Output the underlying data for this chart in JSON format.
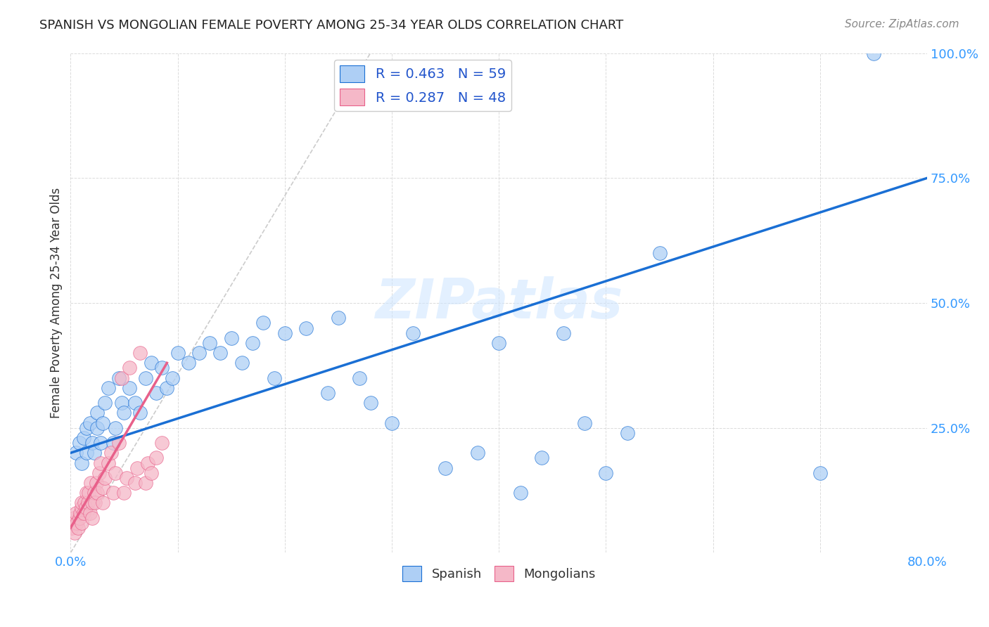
{
  "title": "SPANISH VS MONGOLIAN FEMALE POVERTY AMONG 25-34 YEAR OLDS CORRELATION CHART",
  "source": "Source: ZipAtlas.com",
  "ylabel": "Female Poverty Among 25-34 Year Olds",
  "xlim": [
    0,
    0.8
  ],
  "ylim": [
    0,
    1.0
  ],
  "xticks": [
    0.0,
    0.1,
    0.2,
    0.3,
    0.4,
    0.5,
    0.6,
    0.7,
    0.8
  ],
  "xticklabels": [
    "0.0%",
    "",
    "",
    "",
    "",
    "",
    "",
    "",
    "80.0%"
  ],
  "yticks": [
    0.0,
    0.25,
    0.5,
    0.75,
    1.0
  ],
  "yticklabels": [
    "",
    "25.0%",
    "50.0%",
    "75.0%",
    "100.0%"
  ],
  "R_spanish": 0.463,
  "N_spanish": 59,
  "R_mongolian": 0.287,
  "N_mongolian": 48,
  "spanish_color": "#aecff5",
  "mongolian_color": "#f5b8c8",
  "trendline_spanish_color": "#1a6fd4",
  "trendline_mongolian_color": "#e8608a",
  "watermark": "ZIPatlas",
  "spanish_x": [
    0.005,
    0.008,
    0.01,
    0.012,
    0.015,
    0.015,
    0.018,
    0.02,
    0.022,
    0.025,
    0.025,
    0.028,
    0.03,
    0.032,
    0.035,
    0.04,
    0.042,
    0.045,
    0.048,
    0.05,
    0.055,
    0.06,
    0.065,
    0.07,
    0.075,
    0.08,
    0.085,
    0.09,
    0.095,
    0.1,
    0.11,
    0.12,
    0.13,
    0.14,
    0.15,
    0.16,
    0.17,
    0.18,
    0.19,
    0.2,
    0.22,
    0.24,
    0.25,
    0.27,
    0.28,
    0.3,
    0.32,
    0.35,
    0.38,
    0.4,
    0.42,
    0.44,
    0.46,
    0.48,
    0.5,
    0.52,
    0.55,
    0.7,
    0.75
  ],
  "spanish_y": [
    0.2,
    0.22,
    0.18,
    0.23,
    0.2,
    0.25,
    0.26,
    0.22,
    0.2,
    0.25,
    0.28,
    0.22,
    0.26,
    0.3,
    0.33,
    0.22,
    0.25,
    0.35,
    0.3,
    0.28,
    0.33,
    0.3,
    0.28,
    0.35,
    0.38,
    0.32,
    0.37,
    0.33,
    0.35,
    0.4,
    0.38,
    0.4,
    0.42,
    0.4,
    0.43,
    0.38,
    0.42,
    0.46,
    0.35,
    0.44,
    0.45,
    0.32,
    0.47,
    0.35,
    0.3,
    0.26,
    0.44,
    0.17,
    0.2,
    0.42,
    0.12,
    0.19,
    0.44,
    0.26,
    0.16,
    0.24,
    0.6,
    0.16,
    1.0
  ],
  "mongolian_x": [
    0.001,
    0.002,
    0.003,
    0.004,
    0.005,
    0.006,
    0.007,
    0.008,
    0.009,
    0.01,
    0.01,
    0.01,
    0.012,
    0.013,
    0.014,
    0.015,
    0.016,
    0.017,
    0.018,
    0.019,
    0.02,
    0.02,
    0.022,
    0.023,
    0.024,
    0.025,
    0.027,
    0.028,
    0.03,
    0.03,
    0.032,
    0.035,
    0.038,
    0.04,
    0.042,
    0.045,
    0.048,
    0.05,
    0.052,
    0.055,
    0.06,
    0.062,
    0.065,
    0.07,
    0.072,
    0.075,
    0.08,
    0.085
  ],
  "mongolian_y": [
    0.05,
    0.06,
    0.07,
    0.04,
    0.08,
    0.06,
    0.05,
    0.07,
    0.08,
    0.06,
    0.09,
    0.1,
    0.08,
    0.1,
    0.09,
    0.12,
    0.1,
    0.12,
    0.08,
    0.14,
    0.07,
    0.1,
    0.12,
    0.1,
    0.14,
    0.12,
    0.16,
    0.18,
    0.1,
    0.13,
    0.15,
    0.18,
    0.2,
    0.12,
    0.16,
    0.22,
    0.35,
    0.12,
    0.15,
    0.37,
    0.14,
    0.17,
    0.4,
    0.14,
    0.18,
    0.16,
    0.19,
    0.22
  ],
  "ref_line_x": [
    0.0,
    0.28
  ],
  "ref_line_y": [
    0.0,
    1.0
  ]
}
